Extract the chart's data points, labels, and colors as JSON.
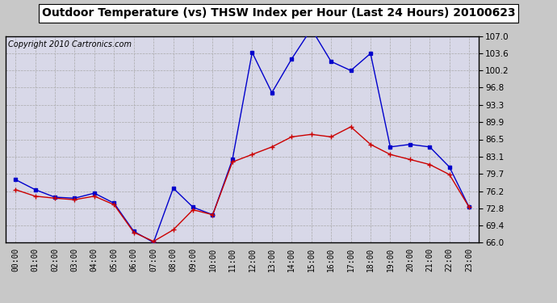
{
  "title": "Outdoor Temperature (vs) THSW Index per Hour (Last 24 Hours) 20100623",
  "copyright": "Copyright 2010 Cartronics.com",
  "x_labels": [
    "00:00",
    "01:00",
    "02:00",
    "03:00",
    "04:00",
    "05:00",
    "06:00",
    "07:00",
    "08:00",
    "09:00",
    "10:00",
    "11:00",
    "12:00",
    "13:00",
    "14:00",
    "15:00",
    "16:00",
    "17:00",
    "18:00",
    "19:00",
    "20:00",
    "21:00",
    "22:00",
    "23:00"
  ],
  "temp_data": [
    76.5,
    75.2,
    74.8,
    74.5,
    75.2,
    73.5,
    68.0,
    66.2,
    68.5,
    72.5,
    71.5,
    82.0,
    83.5,
    85.0,
    87.0,
    87.5,
    87.0,
    89.0,
    85.5,
    83.5,
    82.5,
    81.5,
    79.5,
    73.0
  ],
  "thsw_data": [
    78.5,
    76.5,
    75.0,
    74.8,
    75.8,
    73.8,
    68.2,
    66.0,
    76.8,
    73.0,
    71.5,
    82.5,
    103.8,
    95.8,
    102.5,
    108.5,
    102.0,
    100.2,
    103.6,
    85.0,
    85.5,
    85.0,
    81.0,
    73.0
  ],
  "ylim": [
    66.0,
    107.0
  ],
  "yticks": [
    66.0,
    69.4,
    72.8,
    76.2,
    79.7,
    83.1,
    86.5,
    89.9,
    93.3,
    96.8,
    100.2,
    103.6,
    107.0
  ],
  "temp_color": "#cc0000",
  "thsw_color": "#0000cc",
  "bg_color": "#c8c8c8",
  "plot_bg_color": "#d8d8e8",
  "grid_color": "#aaaaaa",
  "title_bg": "#ffffff",
  "title_fontsize": 10,
  "copyright_fontsize": 7
}
